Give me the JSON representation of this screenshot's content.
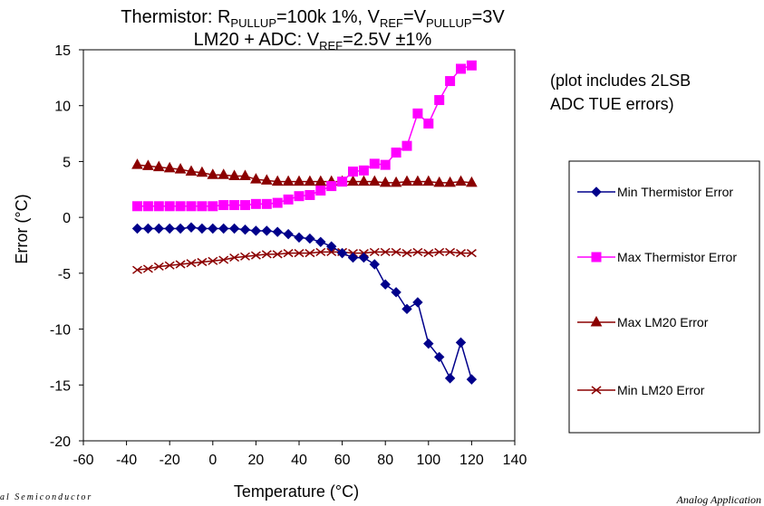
{
  "chart_data": {
    "type": "line",
    "title_line1": {
      "parts": [
        {
          "text": "Thermistor: R",
          "sub": false
        },
        {
          "text": "PULLUP",
          "sub": true
        },
        {
          "text": "=100k 1%, V",
          "sub": false
        },
        {
          "text": "REF",
          "sub": true
        },
        {
          "text": "=V",
          "sub": false
        },
        {
          "text": "PULLUP",
          "sub": true
        },
        {
          "text": "=3V",
          "sub": false
        }
      ]
    },
    "title_line2": {
      "parts": [
        {
          "text": "LM20 + ADC: V",
          "sub": false
        },
        {
          "text": "REF",
          "sub": true
        },
        {
          "text": "=2.5V ±1%",
          "sub": false
        }
      ]
    },
    "xlabel": "Temperature (°C)",
    "ylabel": "Error (°C)",
    "xlim": [
      -60,
      140
    ],
    "ylim": [
      -20,
      15
    ],
    "xticks": [
      -60,
      -40,
      -20,
      0,
      20,
      40,
      60,
      80,
      100,
      120,
      140
    ],
    "yticks": [
      -20,
      -15,
      -10,
      -5,
      0,
      5,
      10,
      15
    ],
    "grid": false,
    "legend_position": "right",
    "note_lines": [
      "(plot includes 2LSB",
      "ADC TUE errors)"
    ],
    "x": [
      -35,
      -30,
      -25,
      -20,
      -15,
      -10,
      -5,
      0,
      5,
      10,
      15,
      20,
      25,
      30,
      35,
      40,
      45,
      50,
      55,
      60,
      65,
      70,
      75,
      80,
      85,
      90,
      95,
      100,
      105,
      110,
      115,
      120
    ],
    "series": [
      {
        "name": "Min Thermistor Error",
        "color": "#00008b",
        "marker": "diamond",
        "values": [
          -1.0,
          -1.0,
          -1.0,
          -1.0,
          -1.0,
          -0.9,
          -1.0,
          -1.0,
          -1.0,
          -1.0,
          -1.1,
          -1.2,
          -1.2,
          -1.3,
          -1.5,
          -1.8,
          -1.9,
          -2.2,
          -2.6,
          -3.2,
          -3.6,
          -3.6,
          -4.2,
          -6.0,
          -6.7,
          -8.2,
          -7.6,
          -11.3,
          -12.5,
          -14.4,
          -11.2,
          -14.5
        ]
      },
      {
        "name": "Max Thermistor Error",
        "color": "#ff00ff",
        "marker": "square",
        "values": [
          1.0,
          1.0,
          1.0,
          1.0,
          1.0,
          1.0,
          1.0,
          1.0,
          1.1,
          1.1,
          1.1,
          1.2,
          1.2,
          1.3,
          1.6,
          1.9,
          2.0,
          2.4,
          2.8,
          3.2,
          4.1,
          4.2,
          4.8,
          4.7,
          5.8,
          6.4,
          9.3,
          8.4,
          10.5,
          12.2,
          13.3,
          13.6
        ]
      },
      {
        "name": "Max LM20 Error",
        "color": "#8b0000",
        "marker": "triangle",
        "values": [
          4.7,
          4.6,
          4.5,
          4.4,
          4.3,
          4.1,
          4.0,
          3.8,
          3.8,
          3.7,
          3.7,
          3.4,
          3.3,
          3.2,
          3.2,
          3.2,
          3.2,
          3.2,
          3.2,
          3.2,
          3.2,
          3.2,
          3.2,
          3.1,
          3.1,
          3.2,
          3.2,
          3.2,
          3.1,
          3.1,
          3.2,
          3.1
        ]
      },
      {
        "name": "Min LM20 Error",
        "color": "#8b0000",
        "marker": "x",
        "values": [
          -4.7,
          -4.6,
          -4.4,
          -4.3,
          -4.2,
          -4.1,
          -4.0,
          -3.9,
          -3.8,
          -3.6,
          -3.5,
          -3.4,
          -3.3,
          -3.3,
          -3.2,
          -3.2,
          -3.2,
          -3.1,
          -3.1,
          -3.1,
          -3.2,
          -3.2,
          -3.1,
          -3.1,
          -3.1,
          -3.2,
          -3.1,
          -3.2,
          -3.1,
          -3.1,
          -3.2,
          -3.2
        ]
      }
    ]
  },
  "footer": {
    "left": "al Semiconductor",
    "right": "Analog Application"
  }
}
